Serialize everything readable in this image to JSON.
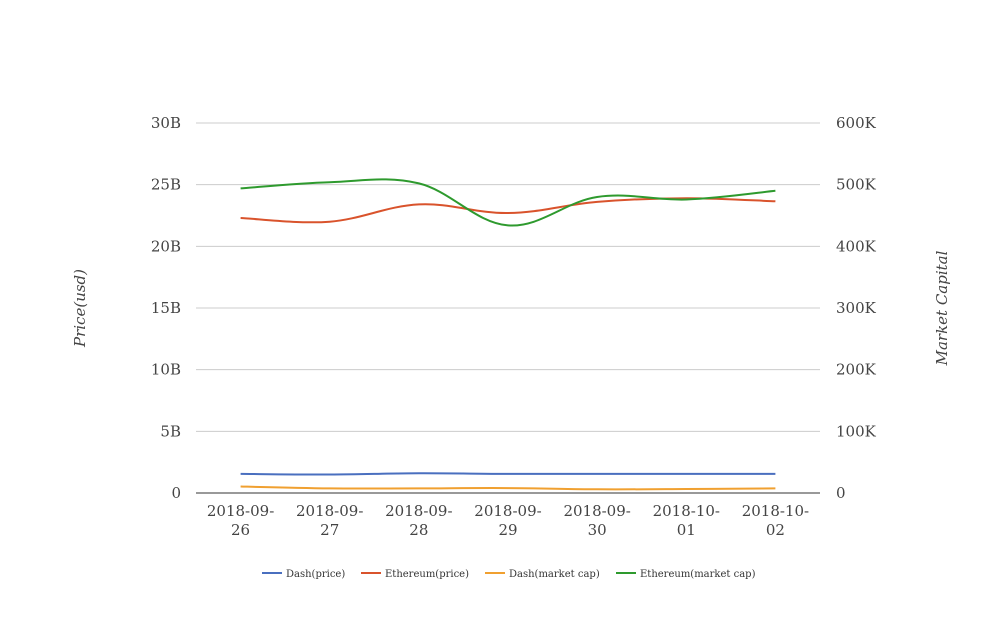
{
  "chart_data": {
    "type": "line",
    "categories": [
      [
        "2018-09-",
        "26"
      ],
      [
        "2018-09-",
        "27"
      ],
      [
        "2018-09-",
        "28"
      ],
      [
        "2018-09-",
        "29"
      ],
      [
        "2018-09-",
        "30"
      ],
      [
        "2018-10-",
        "01"
      ],
      [
        "2018-10-",
        "02"
      ]
    ],
    "ylabel_left": "Price(usd)",
    "ylabel_right": "Market Capital",
    "ylim_left": [
      0,
      30000000000
    ],
    "ylim_right": [
      0,
      600000
    ],
    "yticks_left": [
      "0",
      "5B",
      "10B",
      "15B",
      "20B",
      "25B",
      "30B"
    ],
    "yticks_right": [
      "0",
      "100K",
      "200K",
      "300K",
      "400K",
      "500K",
      "600K"
    ],
    "grid": true,
    "legend_position": "bottom",
    "series": [
      {
        "name": "Dash(price)",
        "axis": "left",
        "color": "#4a6fbf",
        "values": [
          1550000000,
          1500000000,
          1600000000,
          1550000000,
          1550000000,
          1550000000,
          1550000000
        ]
      },
      {
        "name": "Ethereum(price)",
        "axis": "left",
        "color": "#d9532c",
        "values": [
          22300000000,
          22000000000,
          23400000000,
          22700000000,
          23600000000,
          23900000000,
          23650000000
        ]
      },
      {
        "name": "Dash(market cap)",
        "axis": "right",
        "color": "#f0a030",
        "values": [
          10500,
          7500,
          7500,
          8000,
          6000,
          6500,
          7500
        ]
      },
      {
        "name": "Ethereum(market cap)",
        "axis": "right",
        "color": "#2e9a2e",
        "values": [
          494000,
          504000,
          502000,
          434000,
          480000,
          476000,
          490000
        ]
      }
    ]
  }
}
